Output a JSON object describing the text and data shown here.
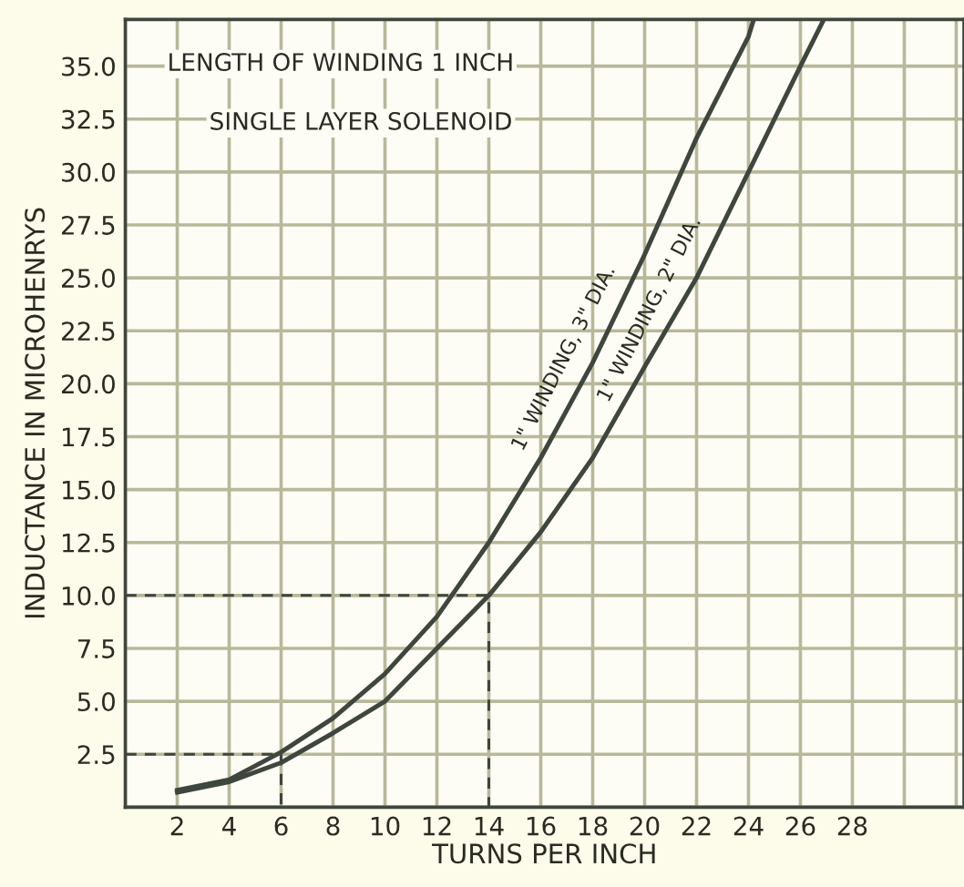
{
  "chart_data": {
    "type": "line",
    "title": "LENGTH OF WINDING 1 INCH",
    "subtitle": "SINGLE LAYER SOLENOID",
    "xlabel": "TURNS PER INCH",
    "ylabel": "INDUCTANCE IN MICROHENRYS",
    "xlim": [
      0,
      32.3
    ],
    "ylim": [
      0,
      37.2
    ],
    "xticks": [
      {
        "value": 0,
        "label": null
      },
      2,
      4,
      6,
      8,
      10,
      12,
      14,
      16,
      18,
      20,
      22,
      24,
      26,
      28,
      {
        "value": 30,
        "label": null
      },
      {
        "value": 32,
        "label": null
      }
    ],
    "yticks": [
      {
        "value": 0,
        "label": null
      },
      2.5,
      {
        "value": 5,
        "label": "5.0"
      },
      7.5,
      {
        "value": 10,
        "label": "10.0"
      },
      12.5,
      {
        "value": 15,
        "label": "15.0"
      },
      17.5,
      {
        "value": 20,
        "label": "20.0"
      },
      22.5,
      {
        "value": 25,
        "label": "25.0"
      },
      27.5,
      {
        "value": 30,
        "label": "30.0"
      },
      32.5,
      {
        "value": 35,
        "label": "35.0"
      }
    ],
    "grid": true,
    "legend": false,
    "marker": "none",
    "series": [
      {
        "name": "1\" WINDING, 3\" DIA.",
        "color": "#3e463e",
        "x": [
          2,
          4,
          6,
          8,
          10,
          12,
          14,
          16,
          18,
          20,
          22,
          24,
          24.2
        ],
        "values": [
          0.8,
          1.3,
          2.6,
          4.2,
          6.3,
          9.0,
          12.5,
          16.5,
          21.0,
          26.1,
          31.6,
          36.4,
          37.2
        ]
      },
      {
        "name": "1\" WINDING, 2\" DIA.",
        "color": "#3e463e",
        "x": [
          2,
          4,
          6,
          8,
          10,
          12,
          14,
          16,
          18,
          20,
          22,
          24,
          26,
          26.9
        ],
        "values": [
          0.7,
          1.2,
          2.1,
          3.5,
          5.0,
          7.5,
          10.0,
          13.0,
          16.5,
          20.8,
          25.0,
          30.0,
          35.0,
          37.2
        ]
      },
      {
        "color": "#3e463e",
        "line_style": "dashed",
        "x": [
          0,
          6,
          6
        ],
        "values": [
          2.5,
          2.5,
          0
        ]
      },
      {
        "color": "#3e463e",
        "line_style": "dashed",
        "x": [
          0,
          14,
          14
        ],
        "values": [
          10.0,
          10.0,
          0
        ]
      }
    ]
  }
}
